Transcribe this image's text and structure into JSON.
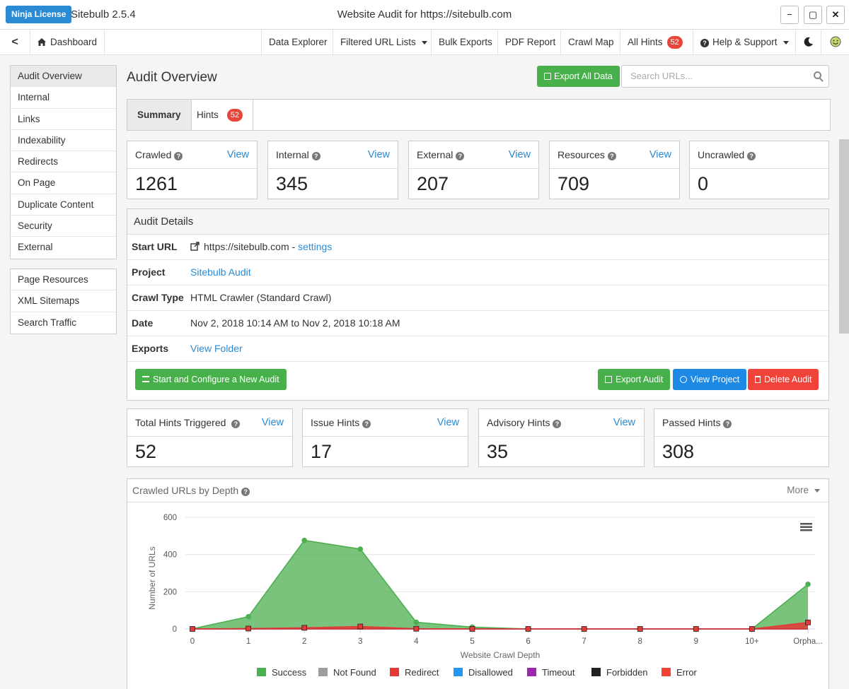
{
  "app": {
    "license_label": "Ninja License",
    "name": "Sitebulb 2.5.4",
    "window_title": "Website Audit for https://sitebulb.com",
    "minimize": "−",
    "maximize": "▢",
    "close": "✕"
  },
  "nav": {
    "back": "<",
    "dashboard": "Dashboard",
    "data_explorer": "Data Explorer",
    "filtered_url_lists": "Filtered URL Lists",
    "bulk_exports": "Bulk Exports",
    "pdf_report": "PDF Report",
    "crawl_map": "Crawl Map",
    "all_hints": "All Hints",
    "all_hints_count": "52",
    "help_support": "Help & Support"
  },
  "sidebar": {
    "group1": [
      "Audit Overview",
      "Internal",
      "Links",
      "Indexability",
      "Redirects",
      "On Page",
      "Duplicate Content",
      "Security",
      "External"
    ],
    "group2": [
      "Page Resources",
      "XML Sitemaps",
      "Search Traffic"
    ]
  },
  "main": {
    "title": "Audit Overview",
    "export_all": "Export All Data",
    "search_placeholder": "Search URLs...",
    "tabs": {
      "summary": "Summary",
      "hints": "Hints",
      "hints_count": "52"
    }
  },
  "stats": [
    {
      "label": "Crawled",
      "view": "View",
      "value": "1261"
    },
    {
      "label": "Internal",
      "view": "View",
      "value": "345"
    },
    {
      "label": "External",
      "view": "View",
      "value": "207"
    },
    {
      "label": "Resources",
      "view": "View",
      "value": "709"
    },
    {
      "label": "Uncrawled",
      "view": "",
      "value": "0"
    }
  ],
  "details": {
    "heading": "Audit Details",
    "start_url_label": "Start URL",
    "start_url": "https://sitebulb.com",
    "start_url_sep": " - ",
    "settings": "settings",
    "project_label": "Project",
    "project": "Sitebulb Audit",
    "crawl_type_label": "Crawl Type",
    "crawl_type": "HTML Crawler (Standard Crawl)",
    "date_label": "Date",
    "date": "Nov 2, 2018 10:14 AM to Nov 2, 2018 10:18 AM",
    "exports_label": "Exports",
    "exports": "View Folder",
    "start_new": "Start and Configure a New Audit",
    "export_audit": "Export Audit",
    "view_project": "View Project",
    "delete_audit": "Delete Audit"
  },
  "hints": [
    {
      "label": "Total Hints Triggered",
      "view": "View",
      "value": "52"
    },
    {
      "label": "Issue Hints",
      "view": "View",
      "value": "17"
    },
    {
      "label": "Advisory Hints",
      "view": "View",
      "value": "35"
    },
    {
      "label": "Passed Hints",
      "view": "",
      "value": "308"
    }
  ],
  "chart_panel": {
    "title": "Crawled URLs by Depth",
    "more": "More"
  },
  "colors": {
    "success": "#4caf50",
    "not_found": "#9e9e9e",
    "redirect": "#e53935",
    "disallowed": "#2196f3",
    "timeout": "#9c27b0",
    "forbidden": "#212121",
    "error": "#f44336"
  },
  "chart_data": {
    "type": "area",
    "xlabel": "Website Crawl Depth",
    "ylabel": "Number of URLs",
    "categories": [
      "0",
      "1",
      "2",
      "3",
      "4",
      "5",
      "6",
      "7",
      "8",
      "9",
      "10+",
      "Orpha..."
    ],
    "ylim": [
      0,
      600
    ],
    "yticks": [
      0,
      200,
      400,
      600
    ],
    "grid": true,
    "legend_position": "bottom",
    "series": [
      {
        "name": "Success",
        "color": "#4caf50",
        "values": [
          1,
          66,
          476,
          429,
          36,
          10,
          0,
          0,
          0,
          0,
          0,
          240
        ]
      },
      {
        "name": "Not Found",
        "color": "#9e9e9e",
        "values": [
          0,
          0,
          0,
          0,
          0,
          0,
          0,
          0,
          0,
          0,
          0,
          0
        ]
      },
      {
        "name": "Redirect",
        "color": "#e53935",
        "values": [
          0,
          2,
          6,
          13,
          1,
          0,
          0,
          0,
          0,
          0,
          0,
          35
        ]
      },
      {
        "name": "Disallowed",
        "color": "#2196f3",
        "values": [
          0,
          0,
          0,
          0,
          0,
          0,
          0,
          0,
          0,
          0,
          0,
          0
        ]
      },
      {
        "name": "Timeout",
        "color": "#9c27b0",
        "values": [
          0,
          0,
          0,
          0,
          0,
          0,
          0,
          0,
          0,
          0,
          0,
          0
        ]
      },
      {
        "name": "Forbidden",
        "color": "#212121",
        "values": [
          0,
          0,
          0,
          0,
          0,
          0,
          0,
          0,
          0,
          0,
          0,
          0
        ]
      },
      {
        "name": "Error",
        "color": "#f44336",
        "values": [
          0,
          0,
          0,
          0,
          0,
          0,
          0,
          0,
          0,
          0,
          0,
          0
        ]
      }
    ]
  }
}
